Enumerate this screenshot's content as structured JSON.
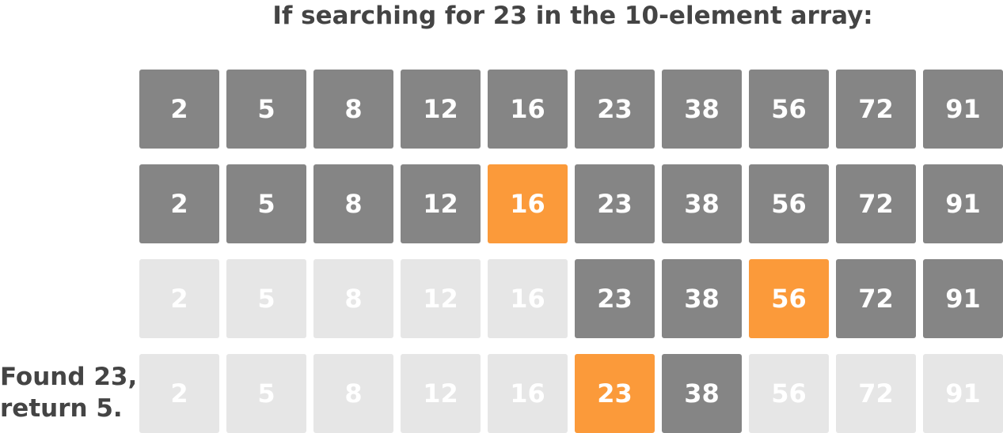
{
  "title": "If searching for 23 in the 10-element array:",
  "values": [
    "2",
    "5",
    "8",
    "12",
    "16",
    "23",
    "38",
    "56",
    "72",
    "91"
  ],
  "steps": [
    {
      "states": [
        "active",
        "active",
        "active",
        "active",
        "active",
        "active",
        "active",
        "active",
        "active",
        "active"
      ]
    },
    {
      "states": [
        "active",
        "active",
        "active",
        "active",
        "mid",
        "active",
        "active",
        "active",
        "active",
        "active"
      ]
    },
    {
      "states": [
        "inactive",
        "inactive",
        "inactive",
        "inactive",
        "inactive",
        "active",
        "active",
        "mid",
        "active",
        "active"
      ]
    },
    {
      "states": [
        "inactive",
        "inactive",
        "inactive",
        "inactive",
        "inactive",
        "mid",
        "active",
        "inactive",
        "inactive",
        "inactive"
      ]
    }
  ],
  "result": {
    "line1": "Found 23,",
    "line2": "return 5."
  },
  "colors": {
    "active": "#858585",
    "mid": "#fb9a3a",
    "inactive": "#e6e6e6",
    "text": "#444444"
  }
}
